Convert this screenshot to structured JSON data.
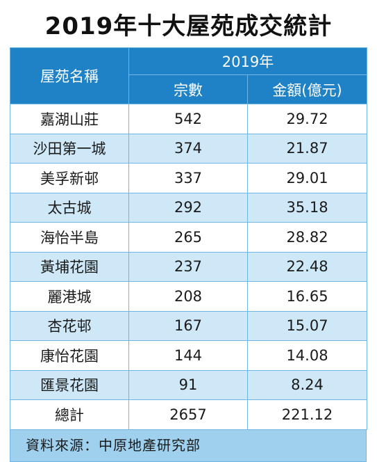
{
  "title": "2019年十大屋苑成交統計",
  "colors": {
    "header_bg": "#1f82c6",
    "stripe_bg": "#cfe8f7",
    "source_bg": "#9fd1ef"
  },
  "table": {
    "col_estate": "屋苑名稱",
    "col_year": "2019年",
    "col_count": "宗數",
    "col_amount": "金額(億元)",
    "rows": [
      {
        "name": "嘉湖山莊",
        "count": "542",
        "amount": "29.72"
      },
      {
        "name": "沙田第一城",
        "count": "374",
        "amount": "21.87"
      },
      {
        "name": "美孚新邨",
        "count": "337",
        "amount": "29.01"
      },
      {
        "name": "太古城",
        "count": "292",
        "amount": "35.18"
      },
      {
        "name": "海怡半島",
        "count": "265",
        "amount": "28.82"
      },
      {
        "name": "黃埔花園",
        "count": "237",
        "amount": "22.48"
      },
      {
        "name": "麗港城",
        "count": "208",
        "amount": "16.65"
      },
      {
        "name": "杏花邨",
        "count": "167",
        "amount": "15.07"
      },
      {
        "name": "康怡花園",
        "count": "144",
        "amount": "14.08"
      },
      {
        "name": "匯景花園",
        "count": "91",
        "amount": "8.24"
      }
    ],
    "total": {
      "name": "總計",
      "count": "2657",
      "amount": "221.12"
    }
  },
  "source": "資料來源：中原地產研究部"
}
